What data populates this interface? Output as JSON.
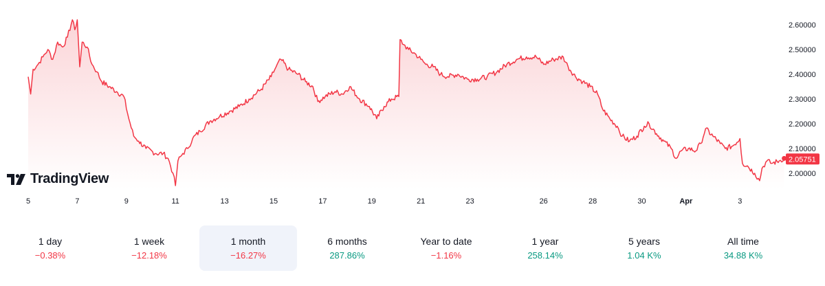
{
  "brand": {
    "name": "TradingView",
    "logo_icon": "tradingview-logo-icon"
  },
  "colors": {
    "line": "#f23645",
    "fill_top": "#fbd5d8",
    "fill_bottom": "#ffffff",
    "negative": "#f23645",
    "positive": "#089981",
    "active_bg": "#f0f3fa"
  },
  "current_price": "2.05751",
  "chart_data": {
    "type": "area",
    "y_ticks": [
      "2.60000",
      "2.50000",
      "2.40000",
      "2.30000",
      "2.20000",
      "2.10000",
      "2.00000"
    ],
    "ylim": [
      1.94,
      2.655
    ],
    "x_ticks": [
      {
        "label": "5",
        "day": 0
      },
      {
        "label": "7",
        "day": 2
      },
      {
        "label": "9",
        "day": 4
      },
      {
        "label": "11",
        "day": 6
      },
      {
        "label": "13",
        "day": 8
      },
      {
        "label": "15",
        "day": 10
      },
      {
        "label": "17",
        "day": 12
      },
      {
        "label": "19",
        "day": 14
      },
      {
        "label": "21",
        "day": 16
      },
      {
        "label": "23",
        "day": 18
      },
      {
        "label": "26",
        "day": 21
      },
      {
        "label": "28",
        "day": 23
      },
      {
        "label": "30",
        "day": 25
      },
      {
        "label": "Apr",
        "day": 26.8,
        "bold": true
      },
      {
        "label": "3",
        "day": 29
      }
    ],
    "series": [
      {
        "name": "price",
        "points": [
          [
            0.0,
            2.39
          ],
          [
            0.1,
            2.32
          ],
          [
            0.2,
            2.42
          ],
          [
            0.4,
            2.44
          ],
          [
            0.6,
            2.47
          ],
          [
            0.8,
            2.5
          ],
          [
            1.0,
            2.46
          ],
          [
            1.2,
            2.53
          ],
          [
            1.4,
            2.51
          ],
          [
            1.6,
            2.55
          ],
          [
            1.8,
            2.62
          ],
          [
            1.9,
            2.58
          ],
          [
            2.0,
            2.62
          ],
          [
            2.1,
            2.43
          ],
          [
            2.2,
            2.53
          ],
          [
            2.4,
            2.51
          ],
          [
            2.6,
            2.44
          ],
          [
            2.8,
            2.41
          ],
          [
            3.0,
            2.37
          ],
          [
            3.3,
            2.35
          ],
          [
            3.6,
            2.33
          ],
          [
            3.9,
            2.31
          ],
          [
            4.1,
            2.22
          ],
          [
            4.3,
            2.15
          ],
          [
            4.5,
            2.13
          ],
          [
            4.8,
            2.1
          ],
          [
            5.2,
            2.08
          ],
          [
            5.5,
            2.08
          ],
          [
            5.7,
            2.06
          ],
          [
            5.9,
            2.0
          ],
          [
            6.0,
            1.95
          ],
          [
            6.1,
            2.05
          ],
          [
            6.3,
            2.08
          ],
          [
            6.5,
            2.1
          ],
          [
            6.7,
            2.14
          ],
          [
            7.0,
            2.17
          ],
          [
            7.4,
            2.21
          ],
          [
            7.8,
            2.23
          ],
          [
            8.2,
            2.25
          ],
          [
            8.6,
            2.27
          ],
          [
            9.0,
            2.3
          ],
          [
            9.5,
            2.34
          ],
          [
            9.9,
            2.39
          ],
          [
            10.1,
            2.43
          ],
          [
            10.3,
            2.46
          ],
          [
            10.6,
            2.42
          ],
          [
            11.0,
            2.4
          ],
          [
            11.3,
            2.37
          ],
          [
            11.6,
            2.35
          ],
          [
            11.8,
            2.29
          ],
          [
            12.1,
            2.31
          ],
          [
            12.5,
            2.33
          ],
          [
            12.8,
            2.32
          ],
          [
            13.1,
            2.35
          ],
          [
            13.5,
            2.3
          ],
          [
            13.9,
            2.27
          ],
          [
            14.2,
            2.22
          ],
          [
            14.5,
            2.27
          ],
          [
            14.8,
            2.3
          ],
          [
            15.1,
            2.31
          ],
          [
            15.15,
            2.54
          ],
          [
            15.3,
            2.52
          ],
          [
            15.5,
            2.5
          ],
          [
            15.8,
            2.48
          ],
          [
            16.0,
            2.46
          ],
          [
            16.2,
            2.44
          ],
          [
            16.5,
            2.43
          ],
          [
            16.8,
            2.4
          ],
          [
            17.1,
            2.39
          ],
          [
            17.5,
            2.4
          ],
          [
            17.9,
            2.38
          ],
          [
            18.3,
            2.38
          ],
          [
            18.7,
            2.39
          ],
          [
            19.1,
            2.41
          ],
          [
            19.5,
            2.44
          ],
          [
            19.9,
            2.46
          ],
          [
            20.3,
            2.47
          ],
          [
            20.7,
            2.47
          ],
          [
            21.0,
            2.44
          ],
          [
            21.4,
            2.46
          ],
          [
            21.8,
            2.47
          ],
          [
            22.0,
            2.43
          ],
          [
            22.3,
            2.39
          ],
          [
            22.6,
            2.37
          ],
          [
            22.9,
            2.35
          ],
          [
            23.2,
            2.32
          ],
          [
            23.4,
            2.26
          ],
          [
            23.7,
            2.22
          ],
          [
            24.0,
            2.19
          ],
          [
            24.2,
            2.15
          ],
          [
            24.5,
            2.13
          ],
          [
            24.8,
            2.15
          ],
          [
            25.1,
            2.19
          ],
          [
            25.3,
            2.2
          ],
          [
            25.6,
            2.16
          ],
          [
            25.9,
            2.13
          ],
          [
            26.2,
            2.1
          ],
          [
            26.4,
            2.06
          ],
          [
            26.6,
            2.09
          ],
          [
            26.9,
            2.1
          ],
          [
            27.2,
            2.09
          ],
          [
            27.4,
            2.12
          ],
          [
            27.6,
            2.18
          ],
          [
            27.9,
            2.15
          ],
          [
            28.2,
            2.12
          ],
          [
            28.4,
            2.1
          ],
          [
            28.7,
            2.11
          ],
          [
            29.0,
            2.14
          ],
          [
            29.1,
            2.04
          ],
          [
            29.3,
            2.03
          ],
          [
            29.6,
            2.0
          ],
          [
            29.8,
            1.97
          ],
          [
            29.9,
            2.02
          ],
          [
            30.1,
            2.05
          ],
          [
            30.3,
            2.04
          ],
          [
            30.6,
            2.05
          ],
          [
            30.8,
            2.06
          ]
        ]
      }
    ]
  },
  "periods": [
    {
      "label": "1 day",
      "value": "−0.38%",
      "dir": "neg",
      "active": false
    },
    {
      "label": "1 week",
      "value": "−12.18%",
      "dir": "neg",
      "active": false
    },
    {
      "label": "1 month",
      "value": "−16.27%",
      "dir": "neg",
      "active": true
    },
    {
      "label": "6 months",
      "value": "287.86%",
      "dir": "pos",
      "active": false
    },
    {
      "label": "Year to date",
      "value": "−1.16%",
      "dir": "neg",
      "active": false
    },
    {
      "label": "1 year",
      "value": "258.14%",
      "dir": "pos",
      "active": false
    },
    {
      "label": "5 years",
      "value": "1.04 K%",
      "dir": "pos",
      "active": false
    },
    {
      "label": "All time",
      "value": "34.88 K%",
      "dir": "pos",
      "active": false
    }
  ]
}
